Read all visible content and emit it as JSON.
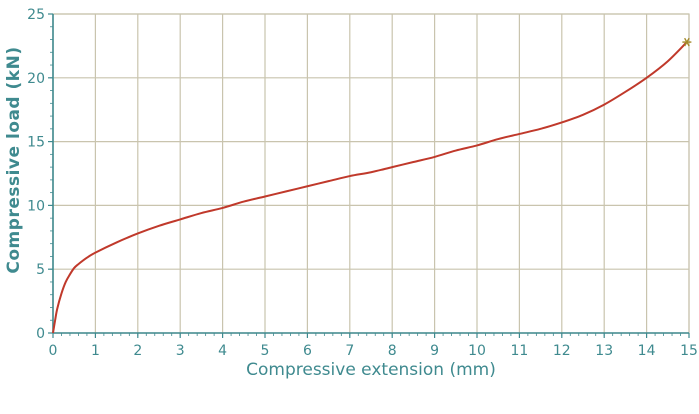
{
  "chart_data": {
    "type": "line",
    "title": "",
    "xlabel": "Compressive extension (mm)",
    "ylabel": "Compressive load (kN)",
    "xlim": [
      0,
      15
    ],
    "ylim": [
      0,
      25
    ],
    "xticks": [
      "0",
      "1",
      "2",
      "3",
      "4",
      "5",
      "6",
      "7",
      "8",
      "9",
      "10",
      "11",
      "12",
      "13",
      "14",
      "15"
    ],
    "yticks": [
      "0",
      "5",
      "10",
      "15",
      "20",
      "25"
    ],
    "grid": true,
    "legend": "none",
    "series": [
      {
        "color": "#c0392b",
        "x": [
          0,
          0.05,
          0.1,
          0.2,
          0.3,
          0.4,
          0.5,
          0.6,
          0.8,
          1.0,
          1.5,
          2.0,
          2.5,
          3.0,
          3.5,
          4.0,
          4.5,
          5.0,
          5.5,
          6.0,
          6.5,
          7.0,
          7.5,
          8.0,
          8.5,
          9.0,
          9.5,
          10.0,
          10.5,
          11.0,
          11.5,
          12.0,
          12.5,
          13.0,
          13.5,
          14.0,
          14.5,
          14.95
        ],
        "y": [
          0,
          1.0,
          1.9,
          3.1,
          4.0,
          4.6,
          5.1,
          5.4,
          5.9,
          6.3,
          7.1,
          7.8,
          8.4,
          8.9,
          9.4,
          9.8,
          10.3,
          10.7,
          11.1,
          11.5,
          11.9,
          12.3,
          12.6,
          13.0,
          13.4,
          13.8,
          14.3,
          14.7,
          15.2,
          15.6,
          16.0,
          16.5,
          17.1,
          17.9,
          18.9,
          20.0,
          21.3,
          22.8
        ]
      }
    ],
    "end_marker": {
      "x": 14.95,
      "y": 22.8,
      "color": "#a38a2a"
    },
    "colors": {
      "axis": "#3f8a8f",
      "grid": "#c9c4ae",
      "line": "#c0392b"
    }
  }
}
